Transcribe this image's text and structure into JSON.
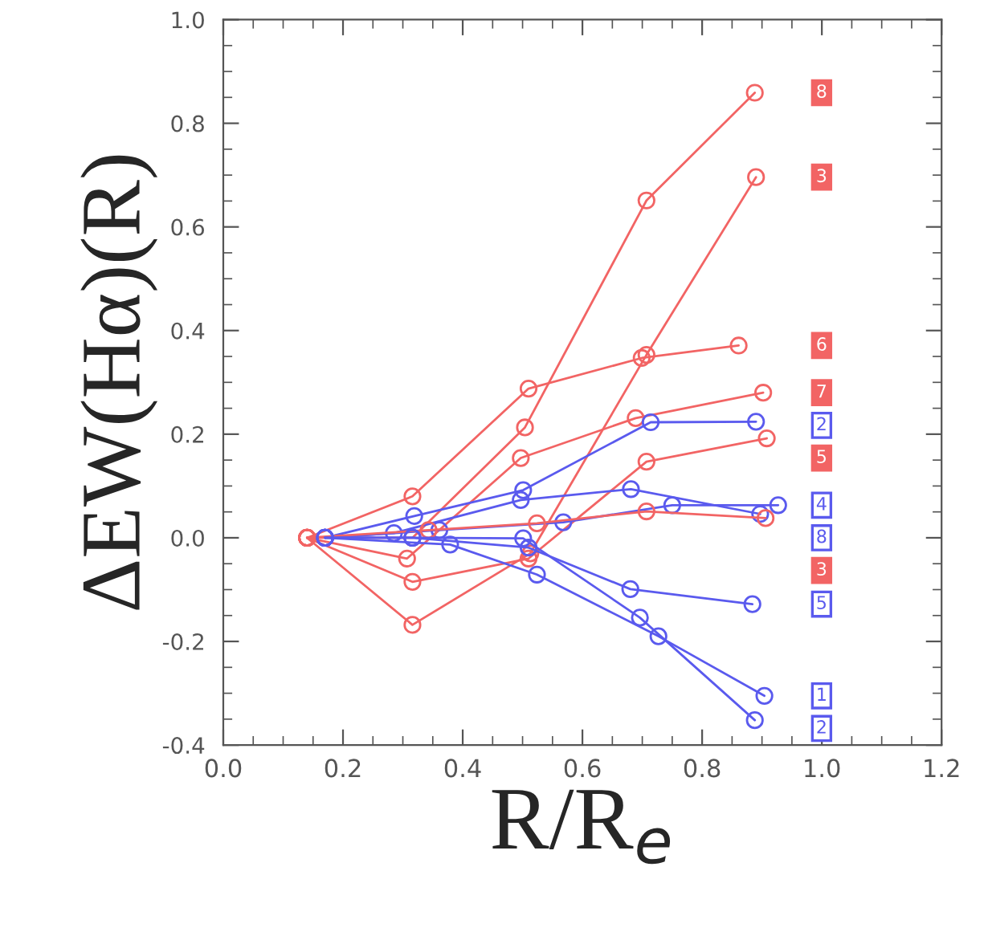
{
  "chart_data": {
    "type": "line",
    "xlabel": "R/R$_{e}$",
    "ylabel": "ΔEW(Hα)(R)",
    "xlim": [
      0.0,
      1.2
    ],
    "xticks": [
      {
        "value": 0.0,
        "label": "0.0"
      },
      {
        "value": 0.2,
        "label": "0.2"
      },
      {
        "value": 0.4,
        "label": "0.4"
      },
      {
        "value": 0.6,
        "label": "0.6"
      },
      {
        "value": 0.8,
        "label": "0.8"
      },
      {
        "value": 1.0,
        "label": "1.0"
      },
      {
        "value": 1.2,
        "label": "1.2"
      }
    ],
    "ylim": [
      -0.4,
      1.0
    ],
    "yticks": [
      {
        "value": -0.4,
        "label": "-0.4"
      },
      {
        "value": -0.2,
        "label": "-0.2"
      },
      {
        "value": 0.0,
        "label": "0.0"
      },
      {
        "value": 0.2,
        "label": "0.2"
      },
      {
        "value": 0.4,
        "label": "0.4"
      },
      {
        "value": 0.6,
        "label": "0.6"
      },
      {
        "value": 0.8,
        "label": "0.8"
      },
      {
        "value": 1.0,
        "label": "1.0"
      }
    ],
    "marker": "circle",
    "grid": false,
    "series": [
      {
        "color": "#f26464",
        "x": [
          0.14,
          0.316,
          0.504,
          0.707,
          0.888
        ],
        "values": [
          0.0,
          0.0,
          0.213,
          0.651,
          0.859
        ]
      },
      {
        "color": "#f26464",
        "x": [
          0.14,
          0.316,
          0.513,
          0.707,
          0.89
        ],
        "values": [
          0.0,
          -0.168,
          -0.03,
          0.353,
          0.696
        ]
      },
      {
        "color": "#f26464",
        "x": [
          0.14,
          0.316,
          0.51,
          0.699,
          0.861
        ],
        "values": [
          0.0,
          0.08,
          0.288,
          0.347,
          0.371
        ]
      },
      {
        "color": "#f26464",
        "x": [
          0.14,
          0.307,
          0.497,
          0.689,
          0.902
        ],
        "values": [
          0.0,
          -0.04,
          0.154,
          0.231,
          0.28
        ]
      },
      {
        "color": "#5a5aee",
        "x": [
          0.17,
          0.319,
          0.501,
          0.714,
          0.89
        ],
        "values": [
          0.0,
          0.042,
          0.092,
          0.223,
          0.224
        ]
      },
      {
        "color": "#f26464",
        "x": [
          0.14,
          0.316,
          0.51,
          0.707,
          0.908
        ],
        "values": [
          0.0,
          -0.085,
          -0.04,
          0.147,
          0.192
        ]
      },
      {
        "color": "#5a5aee",
        "x": [
          0.17,
          0.361,
          0.568,
          0.75,
          0.927
        ],
        "values": [
          0.0,
          0.015,
          0.03,
          0.063,
          0.063
        ]
      },
      {
        "color": "#5a5aee",
        "x": [
          0.17,
          0.285,
          0.497,
          0.681,
          0.897
        ],
        "values": [
          0.0,
          0.009,
          0.073,
          0.094,
          0.046
        ]
      },
      {
        "color": "#f26464",
        "x": [
          0.14,
          0.343,
          0.524,
          0.707,
          0.906
        ],
        "values": [
          0.0,
          0.015,
          0.028,
          0.051,
          0.038
        ]
      },
      {
        "color": "#5a5aee",
        "x": [
          0.17,
          0.316,
          0.51,
          0.68,
          0.884
        ],
        "values": [
          0.0,
          0.0,
          -0.019,
          -0.099,
          -0.128
        ]
      },
      {
        "color": "#5a5aee",
        "x": [
          0.17,
          0.379,
          0.524,
          0.727,
          0.904
        ],
        "values": [
          0.0,
          -0.013,
          -0.071,
          -0.19,
          -0.305
        ]
      },
      {
        "color": "#5a5aee",
        "x": [
          0.17,
          0.316,
          0.501,
          0.696,
          0.888
        ],
        "values": [
          0.0,
          0.0,
          -0.001,
          -0.154,
          -0.352
        ]
      }
    ],
    "annotations": [
      "8",
      "3",
      "6",
      "7",
      "2",
      "5",
      "4",
      "8",
      "3",
      "5",
      "1",
      "2"
    ]
  }
}
